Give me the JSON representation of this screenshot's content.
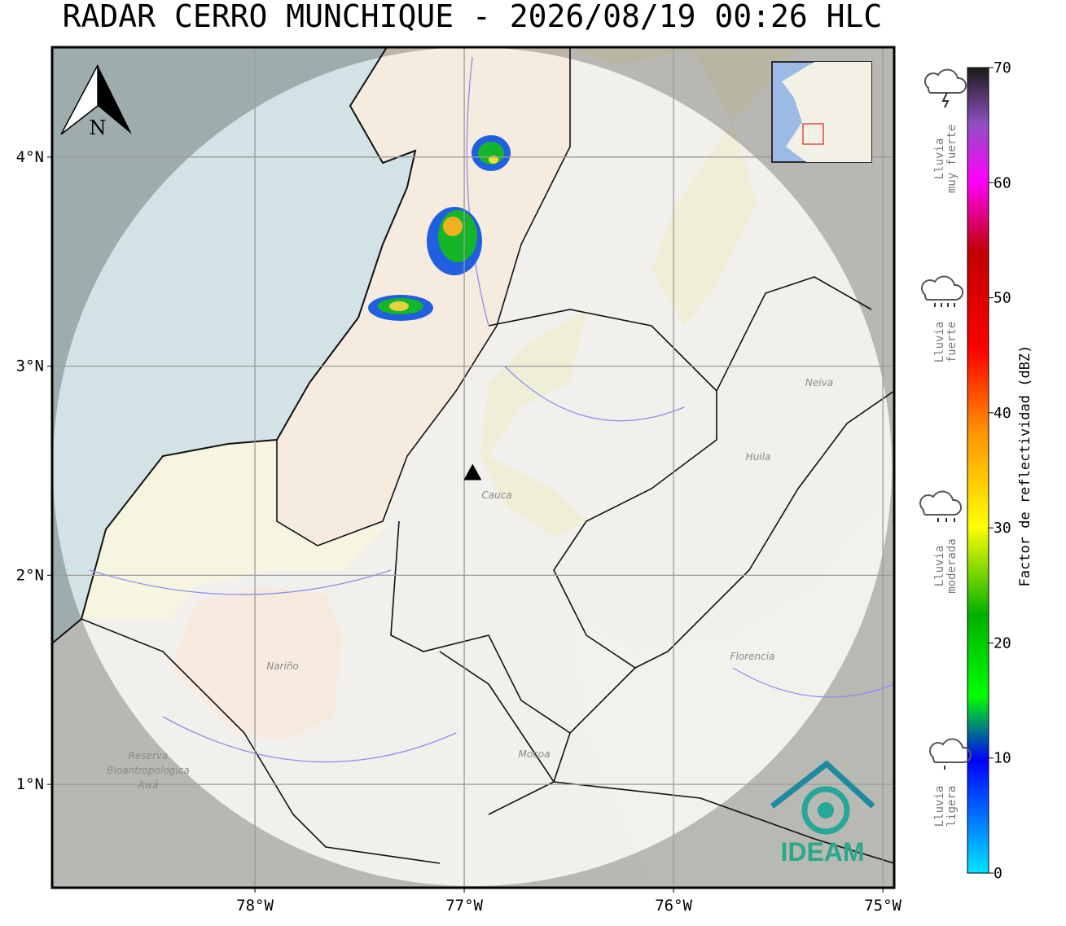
{
  "title": "RADAR CERRO MUNCHIQUE - 2026/08/19 00:26 HLC",
  "map": {
    "xlim": [
      -78.969,
      -74.946
    ],
    "ylim": [
      0.506,
      4.525
    ],
    "xticks": [
      {
        "value": -78,
        "label": "78°W"
      },
      {
        "value": -77,
        "label": "77°W"
      },
      {
        "value": -76,
        "label": "76°W"
      },
      {
        "value": -75,
        "label": "75°W"
      }
    ],
    "yticks": [
      {
        "value": 1,
        "label": "1°N"
      },
      {
        "value": 2,
        "label": "2°N"
      },
      {
        "value": 3,
        "label": "3°N"
      },
      {
        "value": 4,
        "label": "4°N"
      }
    ],
    "grid": true,
    "radar_site": {
      "lon": -76.96,
      "lat": 2.49
    },
    "places": [
      "Neiva",
      "Huila",
      "Nariño",
      "Florencia",
      "Mocoa",
      "Cauca",
      "Reserva",
      "Bioantropologica",
      "Awá"
    ]
  },
  "north_label": "N",
  "logo": "IDEAM",
  "colorbar": {
    "label": "Factor de reflectividad (dBZ)",
    "lim": [
      0,
      70
    ],
    "ticks": [
      0,
      10,
      20,
      30,
      40,
      50,
      60,
      70
    ]
  },
  "legend": [
    {
      "lines": [
        "Lluvia",
        "muy fuerte"
      ]
    },
    {
      "lines": [
        "Lluvia",
        "fuerte"
      ]
    },
    {
      "lines": [
        "Lluvia",
        "moderada"
      ]
    },
    {
      "lines": [
        "Lluvia",
        "ligera"
      ]
    }
  ]
}
